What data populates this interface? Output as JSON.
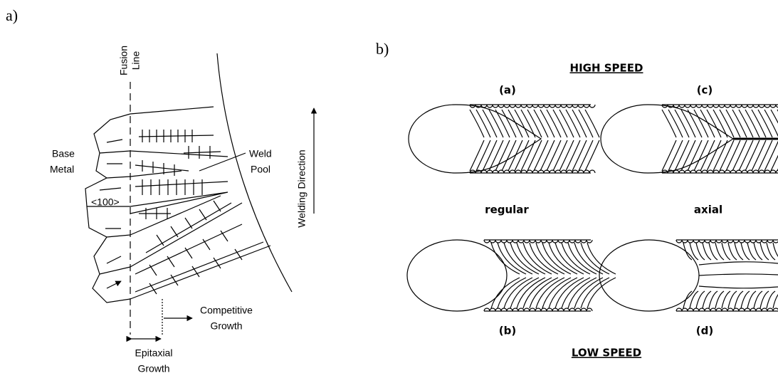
{
  "panel_a": {
    "label": "a)",
    "fusion_line": [
      "Fusion",
      "Line"
    ],
    "base_metal": [
      "Base",
      "Metal"
    ],
    "weld_pool": [
      "Weld",
      "Pool"
    ],
    "welding_direction": "Welding Direction",
    "orientation": "<100>",
    "competitive_growth": [
      "Competitive",
      "Growth"
    ],
    "epitaxial_growth": [
      "Epitaxial",
      "Growth"
    ]
  },
  "panel_b": {
    "label": "b)",
    "top_title": "HIGH SPEED",
    "bottom_title": "LOW SPEED",
    "sublabels": [
      "(a)",
      "(c)",
      "(b)",
      "(d)"
    ],
    "modes": [
      "regular",
      "axial"
    ]
  }
}
